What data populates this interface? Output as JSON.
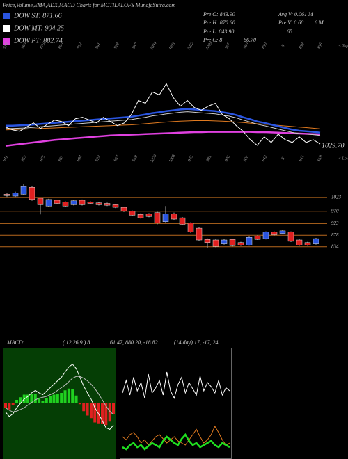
{
  "header": {
    "title": "Price,Volume,EMA,ADX,MACD Charts for MOTILALOFS MunafaSutra.com"
  },
  "legend": [
    {
      "label": "DOW ST: 871.66",
      "color": "#2a55e0"
    },
    {
      "label": "DOW MT: 904.25",
      "color": "#ffffff"
    },
    {
      "label": "DOW PT: 882.74",
      "color": "#e040e0"
    }
  ],
  "info": [
    "Pre O: 843.90",
    "Avg V: 0.061 M",
    "Pre H: 870.60",
    "Pre V: 0.68",
    "6 M",
    "Pre L: 843.90",
    "65",
    "Pre C: 8",
    "66.70"
  ],
  "chart_data": [
    {
      "type": "line",
      "ylim": [
        810,
        1220
      ],
      "annotation": "1029.70",
      "top_note": "< Tops",
      "bottom_note": "< Lows",
      "top_labels": [
        "919",
        "960",
        "875",
        "890",
        "902",
        "941",
        "928",
        "987",
        "1094",
        "1091",
        "1022",
        "1069",
        "997",
        "960",
        "850",
        "8",
        "858",
        "856"
      ],
      "bottom_labels": [
        "911",
        "857",
        "875",
        "885",
        "894",
        "924",
        "967",
        "969",
        "1020",
        "1008",
        "973",
        "981",
        "946",
        "926",
        "842",
        "8",
        "841",
        "859"
      ],
      "series": [
        {
          "color": "#e07a20",
          "values": [
            905,
            906,
            907,
            908,
            909,
            910,
            911,
            912,
            913,
            914,
            915,
            916,
            917,
            918,
            919,
            920,
            921,
            922,
            923,
            925,
            927,
            929,
            931,
            933,
            935,
            936,
            937,
            938,
            938,
            938,
            937,
            936,
            935,
            933,
            931,
            929,
            927,
            925,
            923,
            921,
            919,
            917,
            915,
            913,
            911,
            909
          ]
        },
        {
          "color": "#e040e0",
          "values": [
            848,
            851,
            854,
            857,
            860,
            863,
            866,
            869,
            871,
            873,
            875,
            877,
            879,
            881,
            883,
            885,
            886,
            887,
            888,
            889,
            890,
            891,
            892,
            893,
            894,
            895,
            896,
            897,
            897,
            898,
            898,
            898,
            898,
            898,
            898,
            898,
            897,
            897,
            896,
            895,
            894,
            893,
            892,
            891,
            890,
            889
          ]
        },
        {
          "color": "#cccccc",
          "values": [
            910,
            910,
            911,
            912,
            914,
            916,
            918,
            920,
            922,
            924,
            926,
            928,
            930,
            932,
            934,
            936,
            938,
            940,
            942,
            946,
            950,
            955,
            958,
            962,
            965,
            968,
            970,
            968,
            966,
            964,
            962,
            958,
            954,
            948,
            940,
            933,
            925,
            920,
            914,
            908,
            902,
            896,
            892,
            890,
            888,
            885
          ]
        },
        {
          "color": "#2a55e0",
          "values": [
            920,
            920,
            921,
            922,
            924,
            926,
            928,
            930,
            932,
            934,
            936,
            938,
            940,
            942,
            944,
            946,
            948,
            950,
            952,
            956,
            960,
            965,
            968,
            972,
            975,
            978,
            980,
            978,
            976,
            974,
            972,
            968,
            964,
            958,
            950,
            943,
            935,
            930,
            924,
            918,
            912,
            906,
            902,
            900,
            898,
            895
          ]
        },
        {
          "color": "#ffffff",
          "values": [
            915,
            905,
            900,
            915,
            930,
            910,
            925,
            940,
            935,
            920,
            945,
            950,
            940,
            930,
            950,
            935,
            920,
            930,
            960,
            1010,
            1000,
            1040,
            1030,
            1070,
            1020,
            990,
            1010,
            985,
            975,
            990,
            1000,
            960,
            945,
            920,
            900,
            870,
            850,
            880,
            860,
            890,
            870,
            860,
            880,
            860,
            870,
            855
          ]
        }
      ]
    },
    {
      "type": "candlestick",
      "ylim": [
        820,
        1100
      ],
      "yticks": [
        1023,
        970,
        923,
        878,
        834
      ],
      "grid": true,
      "grid_color": "#b8691e",
      "up_color": "#2a55e0",
      "down_color": "#e02020",
      "open": [
        1035,
        1028,
        1035,
        1062,
        1020,
        990,
        1012,
        1005,
        995,
        1012,
        1005,
        1002,
        1000,
        995,
        985,
        970,
        958,
        960,
        965,
        930,
        960,
        945,
        925,
        905,
        862,
        860,
        845,
        862,
        850,
        840,
        875,
        865,
        890,
        885,
        890,
        860,
        850,
        845
      ],
      "high": [
        1040,
        1045,
        1075,
        1068,
        1022,
        1018,
        1014,
        1008,
        1013,
        1015,
        1008,
        1005,
        1003,
        998,
        988,
        973,
        962,
        963,
        968,
        990,
        965,
        948,
        928,
        908,
        866,
        863,
        863,
        865,
        853,
        873,
        878,
        893,
        893,
        898,
        893,
        863,
        853,
        868
      ],
      "low": [
        1025,
        1025,
        1032,
        1010,
        958,
        988,
        997,
        987,
        992,
        992,
        997,
        992,
        990,
        982,
        967,
        952,
        942,
        947,
        920,
        927,
        937,
        917,
        887,
        857,
        830,
        832,
        842,
        835,
        837,
        838,
        860,
        862,
        877,
        882,
        852,
        837,
        837,
        842
      ],
      "close": [
        1030,
        1040,
        1065,
        1015,
        995,
        1015,
        1000,
        990,
        1010,
        995,
        1000,
        995,
        993,
        985,
        970,
        955,
        945,
        950,
        925,
        960,
        940,
        920,
        890,
        860,
        850,
        835,
        860,
        838,
        840,
        870,
        862,
        890,
        880,
        895,
        855,
        840,
        840,
        865
      ]
    },
    {
      "type": "macd",
      "title": "MACD:",
      "params": "( 12,26,9 ) 8",
      "readout": "61.47, 880.20, -18.82",
      "ylim": [
        -60,
        60
      ],
      "histogram": {
        "up_color": "#20d020",
        "down_color": "#e02020",
        "values": [
          -5,
          -7,
          -2,
          4,
          7,
          10,
          10,
          11,
          11,
          6,
          3,
          6,
          8,
          10,
          11,
          12,
          15,
          17,
          16,
          9,
          -1,
          -9,
          -14,
          -17,
          -22,
          -23,
          -24,
          -25,
          -21,
          -12
        ]
      },
      "series": [
        {
          "color": "#ffffff",
          "values": [
            -10,
            -15,
            -12,
            -5,
            0,
            5,
            8,
            12,
            15,
            12,
            10,
            14,
            18,
            22,
            26,
            30,
            36,
            42,
            45,
            40,
            30,
            20,
            12,
            5,
            -5,
            -12,
            -20,
            -28,
            -30,
            -25
          ]
        },
        {
          "color": "#bbbbbb",
          "values": [
            -5,
            -8,
            -10,
            -9,
            -7,
            -5,
            -2,
            1,
            4,
            6,
            7,
            8,
            10,
            12,
            15,
            18,
            21,
            25,
            29,
            31,
            31,
            29,
            26,
            22,
            17,
            11,
            4,
            -3,
            -9,
            -13
          ]
        }
      ]
    },
    {
      "type": "adx",
      "title": "(14 day) 17, -17, 24",
      "ylim": [
        0,
        100
      ],
      "series": [
        {
          "color": "#ffffff",
          "values": [
            60,
            72,
            58,
            75,
            62,
            70,
            55,
            78,
            60,
            65,
            72,
            58,
            80,
            62,
            55,
            68,
            75,
            60,
            70,
            64,
            58,
            76,
            62,
            70,
            66,
            60,
            72,
            58,
            65,
            62
          ]
        },
        {
          "color": "#e07a20",
          "values": [
            18,
            15,
            20,
            22,
            18,
            12,
            15,
            10,
            14,
            18,
            20,
            16,
            12,
            15,
            18,
            14,
            12,
            10,
            15,
            20,
            25,
            18,
            12,
            15,
            20,
            28,
            22,
            15,
            10,
            12
          ]
        },
        {
          "color": "#20e020",
          "values": [
            8,
            6,
            10,
            12,
            8,
            10,
            6,
            9,
            12,
            10,
            8,
            14,
            18,
            15,
            12,
            10,
            16,
            20,
            14,
            10,
            12,
            8,
            10,
            12,
            14,
            10,
            8,
            12,
            10,
            8
          ]
        }
      ]
    }
  ]
}
